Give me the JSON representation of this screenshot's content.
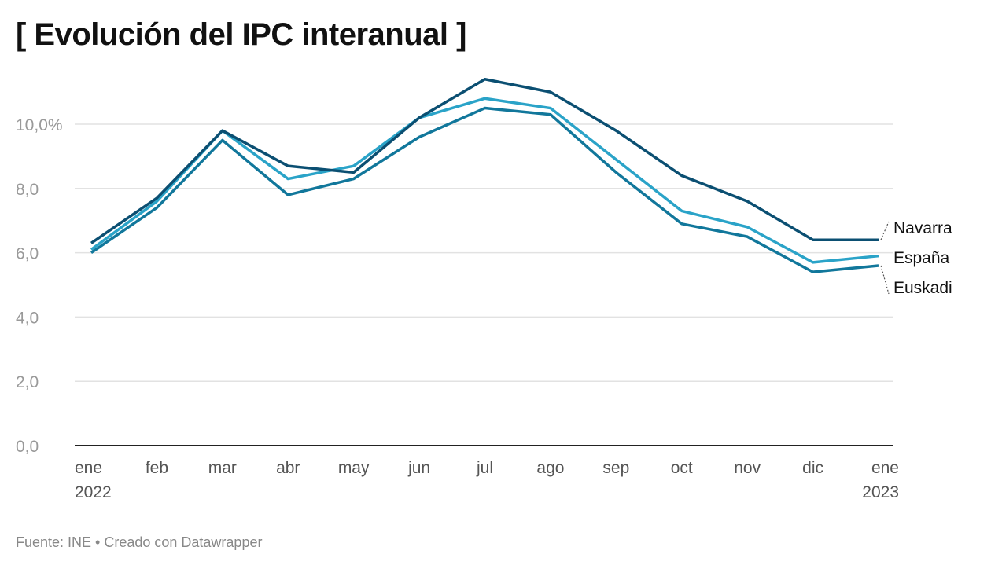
{
  "chart_data": {
    "type": "line",
    "title": "[ Evolución del IPC interanual ]",
    "x": [
      "ene 2022",
      "feb",
      "mar",
      "abr",
      "may",
      "jun",
      "jul",
      "ago",
      "sep",
      "oct",
      "nov",
      "dic",
      "ene 2023"
    ],
    "x_tick_labels": [
      [
        "ene",
        "2022"
      ],
      [
        "feb"
      ],
      [
        "mar"
      ],
      [
        "abr"
      ],
      [
        "may"
      ],
      [
        "jun"
      ],
      [
        "jul"
      ],
      [
        "ago"
      ],
      [
        "sep"
      ],
      [
        "oct"
      ],
      [
        "nov"
      ],
      [
        "dic"
      ],
      [
        "ene",
        "2023"
      ]
    ],
    "y_ticks": [
      0,
      2,
      4,
      6,
      8,
      10
    ],
    "y_tick_labels": [
      "0,0",
      "2,0",
      "4,0",
      "6,0",
      "8,0",
      "10,0%"
    ],
    "ylim": [
      0,
      11.8
    ],
    "grid": true,
    "legend": "direct labels at right end",
    "series": [
      {
        "name": "Navarra",
        "color": "#0b4f72",
        "values": [
          6.3,
          7.7,
          9.8,
          8.7,
          8.5,
          10.2,
          11.4,
          11.0,
          9.8,
          8.4,
          7.6,
          6.4,
          6.4
        ]
      },
      {
        "name": "España",
        "color": "#2aa3c8",
        "values": [
          6.1,
          7.6,
          9.8,
          8.3,
          8.7,
          10.2,
          10.8,
          10.5,
          8.9,
          7.3,
          6.8,
          5.7,
          5.9
        ]
      },
      {
        "name": "Euskadi",
        "color": "#11779b",
        "values": [
          6.0,
          7.4,
          9.5,
          7.8,
          8.3,
          9.6,
          10.5,
          10.3,
          8.5,
          6.9,
          6.5,
          5.4,
          5.6
        ]
      }
    ]
  },
  "footer": "Fuente: INE • Creado con Datawrapper"
}
